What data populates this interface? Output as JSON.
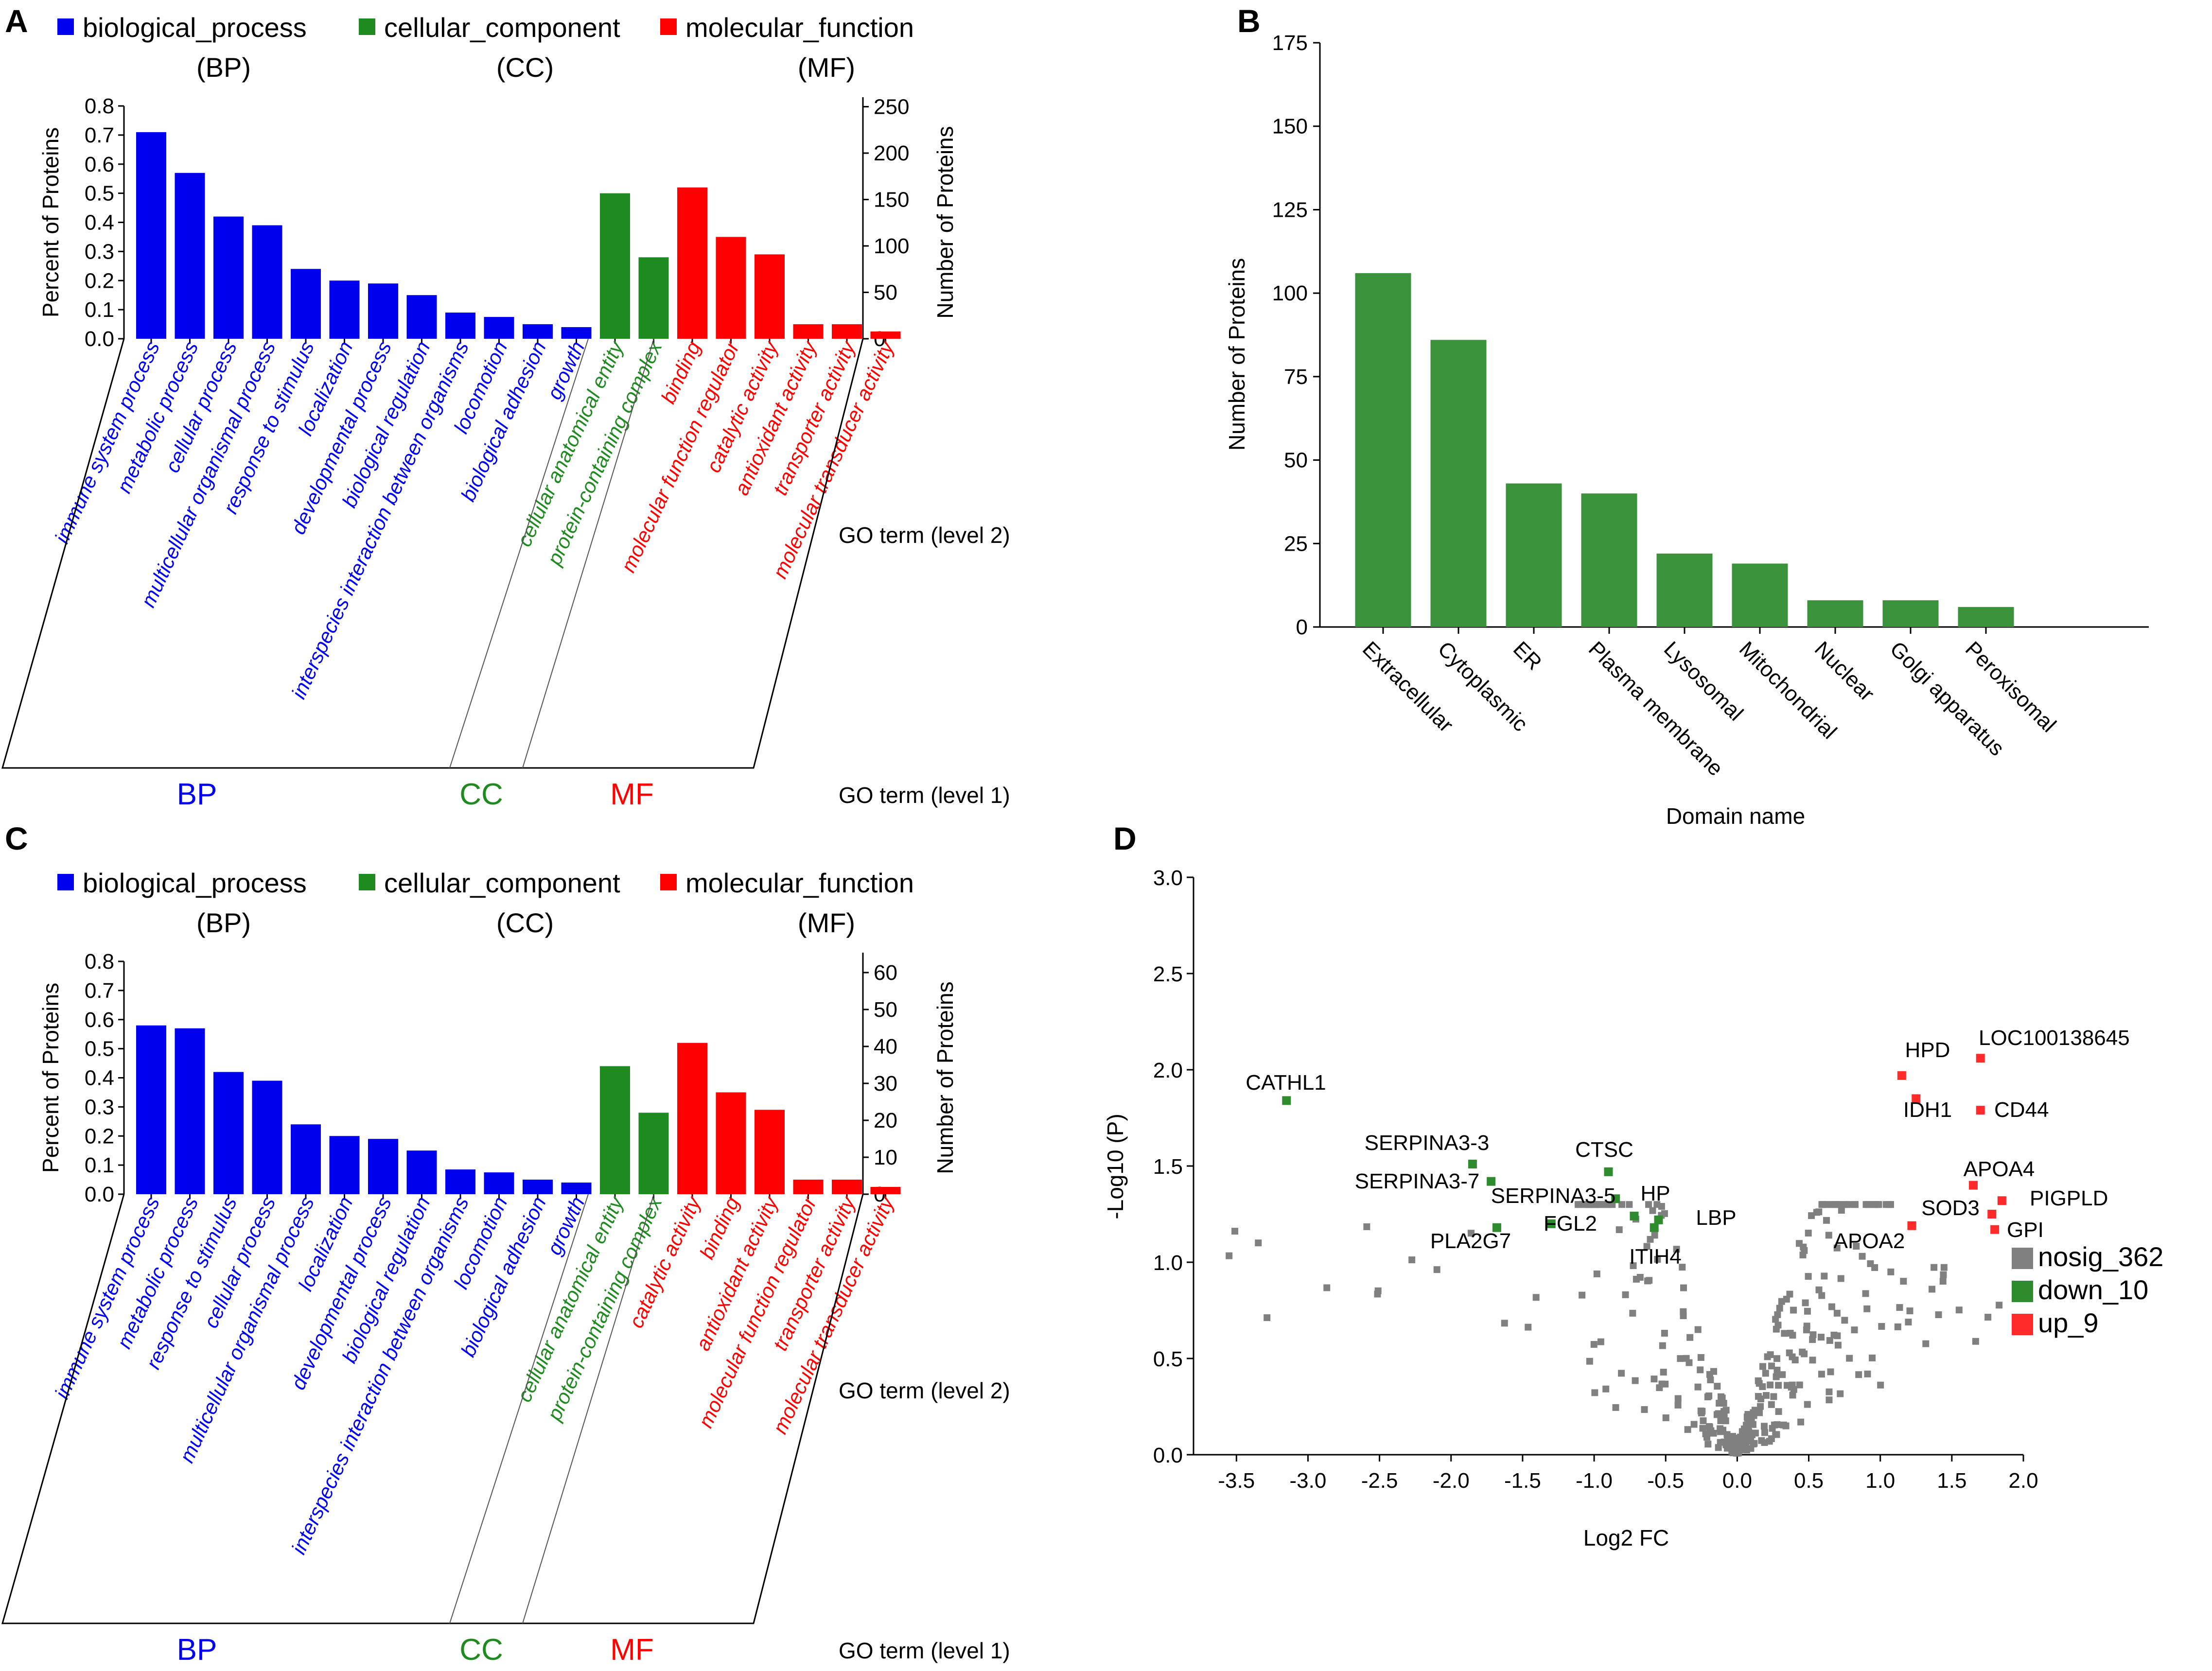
{
  "panels": {
    "a": "A",
    "b": "B",
    "c": "C",
    "d": "D"
  },
  "colors": {
    "BP": "#0000ee",
    "CC": "#1f8a1f",
    "MF": "#ff0000",
    "bar_b": "#3a923a",
    "nosig": "#808080",
    "down": "#2e8b2e",
    "up": "#ff2a2a"
  },
  "chart_data": [
    {
      "id": "A",
      "type": "bar",
      "legend": [
        {
          "label": "biological_process",
          "abbr": "(BP)",
          "group": "BP"
        },
        {
          "label": "cellular_component",
          "abbr": "(CC)",
          "group": "CC"
        },
        {
          "label": "molecular_function",
          "abbr": "(MF)",
          "group": "MF"
        }
      ],
      "ylabel": "Percent of Proteins",
      "y2label": "Number of Proteins",
      "yticks": [
        "0.0",
        "0.1",
        "0.2",
        "0.3",
        "0.4",
        "0.5",
        "0.6",
        "0.7",
        "0.8"
      ],
      "y2ticks": [
        "0",
        "50",
        "100",
        "150",
        "200",
        "250"
      ],
      "ylim": [
        0,
        0.8
      ],
      "y2lim": [
        0,
        260
      ],
      "level2_label": "GO term (level 2)",
      "level1_label": "GO term (level 1)",
      "level1": [
        {
          "label": "BP",
          "group": "BP"
        },
        {
          "label": "CC",
          "group": "CC"
        },
        {
          "label": "MF",
          "group": "MF"
        }
      ],
      "bars": [
        {
          "name": "immune system process",
          "group": "BP",
          "value": 0.71
        },
        {
          "name": "metabolic process",
          "group": "BP",
          "value": 0.57
        },
        {
          "name": "cellular process",
          "group": "BP",
          "value": 0.42
        },
        {
          "name": "multicellular organismal process",
          "group": "BP",
          "value": 0.39
        },
        {
          "name": "response to stimulus",
          "group": "BP",
          "value": 0.24
        },
        {
          "name": "localization",
          "group": "BP",
          "value": 0.2
        },
        {
          "name": "developmental process",
          "group": "BP",
          "value": 0.19
        },
        {
          "name": "biological regulation",
          "group": "BP",
          "value": 0.15
        },
        {
          "name": "interspecies interaction between organisms",
          "group": "BP",
          "value": 0.09
        },
        {
          "name": "locomotion",
          "group": "BP",
          "value": 0.075
        },
        {
          "name": "biological adhesion",
          "group": "BP",
          "value": 0.05
        },
        {
          "name": "growth",
          "group": "BP",
          "value": 0.04
        },
        {
          "name": "cellular anatomical entity",
          "group": "CC",
          "value": 0.5
        },
        {
          "name": "protein-containing complex",
          "group": "CC",
          "value": 0.28
        },
        {
          "name": "binding",
          "group": "MF",
          "value": 0.52
        },
        {
          "name": "molecular function regulator",
          "group": "MF",
          "value": 0.35
        },
        {
          "name": "catalytic activity",
          "group": "MF",
          "value": 0.29
        },
        {
          "name": "antioxidant activity",
          "group": "MF",
          "value": 0.05
        },
        {
          "name": "transporter activity",
          "group": "MF",
          "value": 0.05
        },
        {
          "name": "molecular transducer activity",
          "group": "MF",
          "value": 0.025
        }
      ]
    },
    {
      "id": "B",
      "type": "bar",
      "ylabel": "Number of Proteins",
      "xlabel": "Domain name",
      "yticks": [
        "0",
        "25",
        "50",
        "75",
        "100",
        "125",
        "150",
        "175"
      ],
      "ylim": [
        0,
        175
      ],
      "categories": [
        "Extracellular",
        "Cytoplasmic",
        "ER",
        "Plasma membrane",
        "Lysosomal",
        "Mitochondrial",
        "Nuclear",
        "Golgi apparatus",
        "Peroxisomal"
      ],
      "values": [
        106,
        86,
        43,
        40,
        22,
        19,
        8,
        8,
        6
      ]
    },
    {
      "id": "C",
      "type": "bar",
      "legend": [
        {
          "label": "biological_process",
          "abbr": "(BP)",
          "group": "BP"
        },
        {
          "label": "cellular_component",
          "abbr": "(CC)",
          "group": "CC"
        },
        {
          "label": "molecular_function",
          "abbr": "(MF)",
          "group": "MF"
        }
      ],
      "ylabel": "Percent of Proteins",
      "y2label": "Number of Proteins",
      "yticks": [
        "0.0",
        "0.1",
        "0.2",
        "0.3",
        "0.4",
        "0.5",
        "0.6",
        "0.7",
        "0.8"
      ],
      "y2ticks": [
        "0",
        "10",
        "20",
        "30",
        "40",
        "50",
        "60"
      ],
      "ylim": [
        0,
        0.8
      ],
      "y2lim": [
        0,
        62
      ],
      "level2_label": "GO term (level 2)",
      "level1_label": "GO term (level 1)",
      "level1": [
        {
          "label": "BP",
          "group": "BP"
        },
        {
          "label": "CC",
          "group": "CC"
        },
        {
          "label": "MF",
          "group": "MF"
        }
      ],
      "bars": [
        {
          "name": "immune system process",
          "group": "BP",
          "value": 0.58
        },
        {
          "name": "metabolic process",
          "group": "BP",
          "value": 0.57
        },
        {
          "name": "response to stimulus",
          "group": "BP",
          "value": 0.42
        },
        {
          "name": "cellular process",
          "group": "BP",
          "value": 0.39
        },
        {
          "name": "multicellular organismal process",
          "group": "BP",
          "value": 0.24
        },
        {
          "name": "localization",
          "group": "BP",
          "value": 0.2
        },
        {
          "name": "developmental process",
          "group": "BP",
          "value": 0.19
        },
        {
          "name": "biological regulation",
          "group": "BP",
          "value": 0.15
        },
        {
          "name": "interspecies interaction between organisms",
          "group": "BP",
          "value": 0.085
        },
        {
          "name": "locomotion",
          "group": "BP",
          "value": 0.075
        },
        {
          "name": "biological adhesion",
          "group": "BP",
          "value": 0.05
        },
        {
          "name": "growth",
          "group": "BP",
          "value": 0.04
        },
        {
          "name": "cellular anatomical entity",
          "group": "CC",
          "value": 0.44
        },
        {
          "name": "protein-containing complex",
          "group": "CC",
          "value": 0.28
        },
        {
          "name": "catalytic activity",
          "group": "MF",
          "value": 0.52
        },
        {
          "name": "binding",
          "group": "MF",
          "value": 0.35
        },
        {
          "name": "antioxidant activity",
          "group": "MF",
          "value": 0.29
        },
        {
          "name": "molecular function regulator",
          "group": "MF",
          "value": 0.05
        },
        {
          "name": "transporter activity",
          "group": "MF",
          "value": 0.05
        },
        {
          "name": "molecular transducer activity",
          "group": "MF",
          "value": 0.025
        }
      ]
    },
    {
      "id": "D",
      "type": "scatter",
      "xlabel": "Log2 FC",
      "ylabel": "-Log10 (P)",
      "xlim": [
        -3.8,
        2.0
      ],
      "ylim": [
        0,
        3.0
      ],
      "xticks": [
        "-3.5",
        "-3.0",
        "-2.5",
        "-2.0",
        "-1.5",
        "-1.0",
        "-0.5",
        "0.0",
        "0.5",
        "1.0",
        "1.5",
        "2.0"
      ],
      "yticks": [
        "0.0",
        "0.5",
        "1.0",
        "1.5",
        "2.0",
        "2.5",
        "3.0"
      ],
      "legend": [
        {
          "label": "nosig_362",
          "key": "nosig"
        },
        {
          "label": "down_10",
          "key": "down"
        },
        {
          "label": "up_9",
          "key": "up"
        }
      ],
      "up": [
        {
          "x": 1.15,
          "y": 1.97,
          "label": "HPD"
        },
        {
          "x": 1.7,
          "y": 2.06,
          "label": "LOC100138645"
        },
        {
          "x": 1.25,
          "y": 1.85,
          "label": "IDH1"
        },
        {
          "x": 1.7,
          "y": 1.79,
          "label": "CD44"
        },
        {
          "x": 1.65,
          "y": 1.4,
          "label": "APOA4"
        },
        {
          "x": 1.85,
          "y": 1.32,
          "label": "PIGPLD"
        },
        {
          "x": 1.78,
          "y": 1.25,
          "label": "SOD3"
        },
        {
          "x": 1.22,
          "y": 1.19,
          "label": "APOA2"
        },
        {
          "x": 1.8,
          "y": 1.17,
          "label": "GPI"
        }
      ],
      "down": [
        {
          "x": -3.15,
          "y": 1.84,
          "label": "CATHL1"
        },
        {
          "x": -1.85,
          "y": 1.51,
          "label": "SERPINA3-3"
        },
        {
          "x": -1.72,
          "y": 1.42,
          "label": "SERPINA3-7"
        },
        {
          "x": -0.9,
          "y": 1.47,
          "label": "CTSC"
        },
        {
          "x": -0.85,
          "y": 1.33,
          "label": "SERPINA3-5"
        },
        {
          "x": -0.72,
          "y": 1.24,
          "label": "HP"
        },
        {
          "x": -1.3,
          "y": 1.2,
          "label": "FGL2"
        },
        {
          "x": -0.55,
          "y": 1.22,
          "label": "LBP"
        },
        {
          "x": -0.58,
          "y": 1.18,
          "label": "ITIH4"
        },
        {
          "x": -1.68,
          "y": 1.18,
          "label": "PLA2G7"
        }
      ]
    }
  ]
}
